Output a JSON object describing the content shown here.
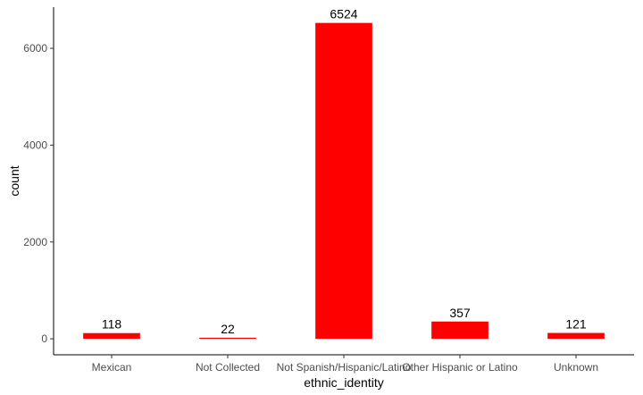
{
  "chart_data": {
    "type": "bar",
    "categories": [
      "Mexican",
      "Not Collected",
      "Not Spanish/Hispanic/Latino",
      "Other Hispanic or Latino",
      "Unknown"
    ],
    "values": [
      118,
      22,
      6524,
      357,
      121
    ],
    "data_labels": [
      "118",
      "22",
      "6524",
      "357",
      "121"
    ],
    "xlabel": "ethnic_identity",
    "ylabel": "count",
    "ylim": [
      -330,
      6850
    ],
    "yticks": [
      0,
      2000,
      4000,
      6000
    ],
    "grid": false,
    "bar_color": "#ff0000",
    "axis_color": "#000000"
  }
}
